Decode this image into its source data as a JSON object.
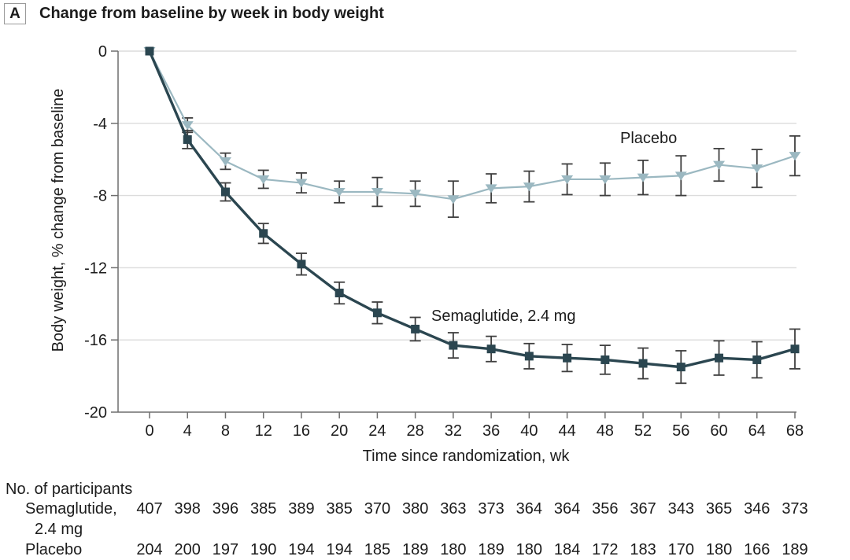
{
  "panel": {
    "label": "A",
    "title": "Change from baseline by week in body weight"
  },
  "colors": {
    "semaglutide": "#2b4650",
    "placebo": "#9bb8c1",
    "error_bar": "#3f3f3f",
    "gridline": "#dcdcdc",
    "axis": "#6e6e6e",
    "text": "#1c1c1c"
  },
  "chart_data": {
    "type": "line",
    "title": "Change from baseline by week in body weight",
    "xlabel": "Time since randomization, wk",
    "ylabel": "Body weight, % change from baseline",
    "x": [
      0,
      4,
      8,
      12,
      16,
      20,
      24,
      28,
      32,
      36,
      40,
      44,
      48,
      52,
      56,
      60,
      64,
      68
    ],
    "xticks": [
      0,
      4,
      8,
      12,
      16,
      20,
      24,
      28,
      32,
      36,
      40,
      44,
      48,
      52,
      56,
      60,
      64,
      68
    ],
    "ylim": [
      -20,
      0
    ],
    "yticks": [
      0,
      -4,
      -8,
      -12,
      -16,
      -20
    ],
    "grid": true,
    "legend_position": "inline-labels",
    "series": [
      {
        "name": "Placebo",
        "marker": "triangle-down",
        "color": "#9bb8c1",
        "values": [
          0,
          -4.1,
          -6.1,
          -7.1,
          -7.3,
          -7.8,
          -7.8,
          -7.9,
          -8.2,
          -7.6,
          -7.5,
          -7.1,
          -7.1,
          -7.0,
          -6.9,
          -6.3,
          -6.5,
          -5.8
        ],
        "err": [
          0,
          0.4,
          0.45,
          0.5,
          0.55,
          0.6,
          0.8,
          0.7,
          1.0,
          0.8,
          0.85,
          0.85,
          0.9,
          0.95,
          1.1,
          0.9,
          1.05,
          1.1
        ]
      },
      {
        "name": "Semaglutide, 2.4 mg",
        "marker": "square",
        "color": "#2b4650",
        "values": [
          0,
          -4.9,
          -7.8,
          -10.1,
          -11.8,
          -13.4,
          -14.5,
          -15.4,
          -16.3,
          -16.5,
          -16.9,
          -17.0,
          -17.1,
          -17.3,
          -17.5,
          -17.0,
          -17.1,
          -16.5
        ],
        "err": [
          0,
          0.5,
          0.5,
          0.55,
          0.6,
          0.6,
          0.6,
          0.65,
          0.7,
          0.7,
          0.7,
          0.75,
          0.8,
          0.85,
          0.9,
          0.95,
          1.0,
          1.1
        ]
      }
    ]
  },
  "participants": {
    "heading": "No. of participants",
    "rows": [
      {
        "label_line1": "Semaglutide,",
        "label_line2": "2.4 mg",
        "counts": [
          407,
          398,
          396,
          385,
          389,
          385,
          370,
          380,
          363,
          373,
          364,
          364,
          356,
          367,
          343,
          365,
          346,
          373
        ]
      },
      {
        "label_line1": "Placebo",
        "label_line2": "",
        "counts": [
          204,
          200,
          197,
          190,
          194,
          194,
          185,
          189,
          180,
          189,
          180,
          184,
          172,
          183,
          170,
          180,
          166,
          189
        ]
      }
    ]
  }
}
